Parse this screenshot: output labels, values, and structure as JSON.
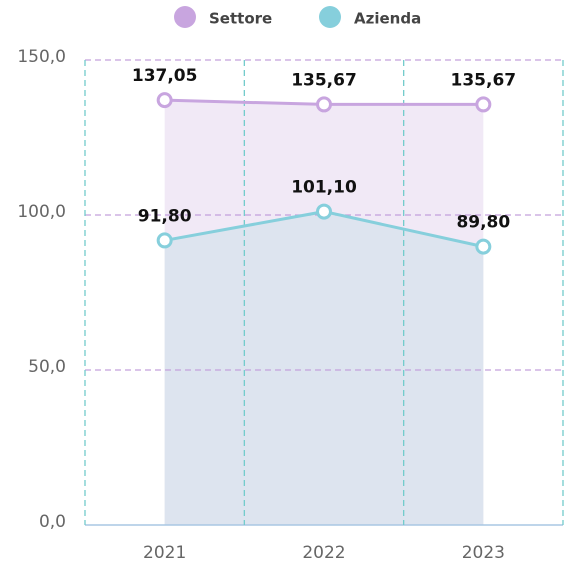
{
  "chart_data": {
    "type": "area",
    "categories": [
      "2021",
      "2022",
      "2023"
    ],
    "series": [
      {
        "name": "Settore",
        "color": "#c8a5df",
        "fill": "#f1e9f6",
        "values": [
          137.05,
          135.67,
          135.67
        ],
        "value_labels": [
          "137,05",
          "135,67",
          "135,67"
        ]
      },
      {
        "name": "Azienda",
        "color": "#86cfdc",
        "fill": "#dde4ef",
        "values": [
          91.8,
          101.1,
          89.8
        ],
        "value_labels": [
          "91,80",
          "101,10",
          "89,80"
        ]
      }
    ],
    "ylim": [
      0,
      150
    ],
    "yticks": [
      {
        "value": 0,
        "label": "0,0"
      },
      {
        "value": 50,
        "label": "50,0"
      },
      {
        "value": 100,
        "label": "100,0"
      },
      {
        "value": 150,
        "label": "150,0"
      }
    ],
    "grid": true,
    "legend": "top"
  }
}
